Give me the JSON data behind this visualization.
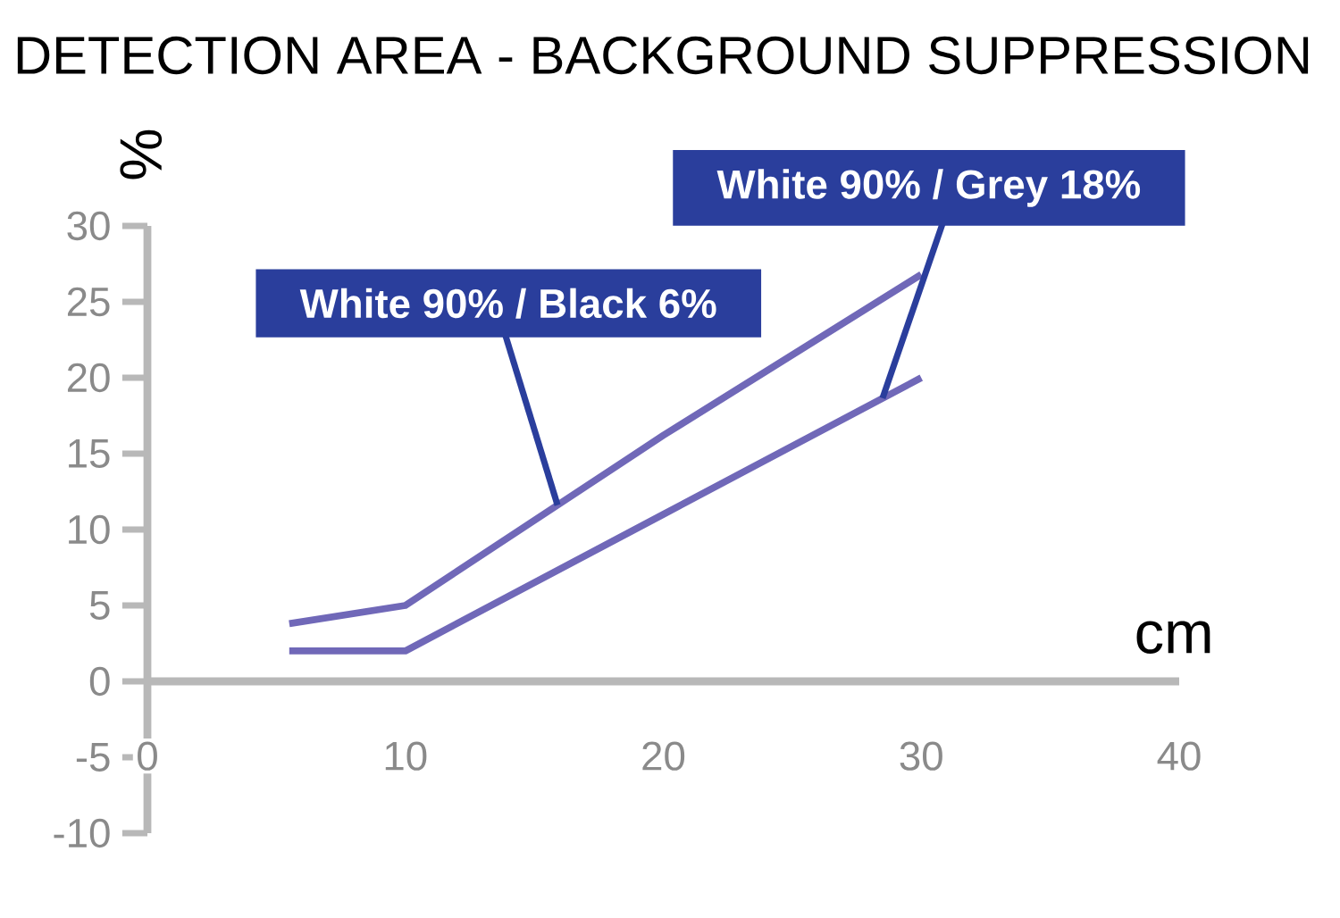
{
  "chart_data": {
    "type": "line",
    "title": "DETECTION AREA - BACKGROUND  SUPPRESSION",
    "xlabel": "cm",
    "ylabel": "%",
    "x": [
      5.5,
      10,
      20,
      30
    ],
    "series": [
      {
        "name": "White 90% / Black 6%",
        "color": "#7068b8",
        "values": [
          3.8,
          5.0,
          16.2,
          26.8
        ]
      },
      {
        "name": "White 90% / Grey 18%",
        "color": "#7068b8",
        "values": [
          2.0,
          2.0,
          11.0,
          20.0
        ]
      }
    ],
    "xlim": [
      0,
      40
    ],
    "xticks": [
      0,
      10,
      20,
      30,
      40
    ],
    "ylim": [
      -10,
      30
    ],
    "yticks": [
      -10,
      -5,
      0,
      5,
      10,
      15,
      20,
      25,
      30
    ],
    "grid": false,
    "legend": false,
    "marker": "none",
    "line_style": "solid"
  }
}
